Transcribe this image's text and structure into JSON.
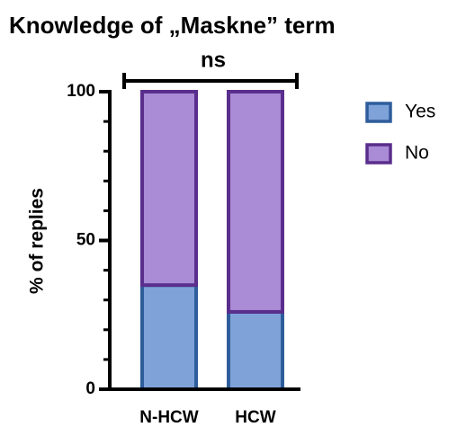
{
  "chart_data": {
    "type": "stacked_bar",
    "title": "Knowledge of  „Maskne” term",
    "annotation": "ns",
    "y_label": "% of replies",
    "categories": [
      "N-HCW",
      "HCW"
    ],
    "series": [
      {
        "name": "Yes",
        "color": "#7fa3d9",
        "edge_color": "#2f5d9c",
        "values": [
          35,
          26
        ]
      },
      {
        "name": "No",
        "color": "#a98bd6",
        "edge_color": "#5a2e8c",
        "values": [
          65,
          74
        ]
      }
    ],
    "ylim": [
      0,
      100
    ],
    "yticks": [
      0,
      50,
      100
    ],
    "yminorticks": [
      10,
      20,
      30,
      40,
      60,
      70,
      80,
      90
    ]
  }
}
